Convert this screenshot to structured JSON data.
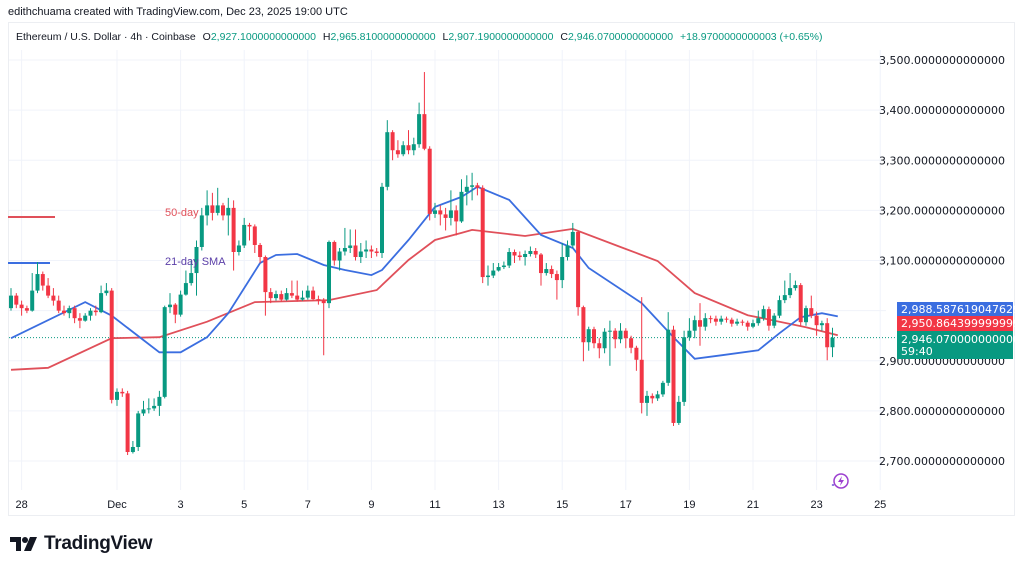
{
  "credit": "edithchuama created with TradingView.com, Dec 23, 2025 19:00 UTC",
  "legend": {
    "symbol": "Ethereum / U.S. Dollar · 4h · Coinbase",
    "o_label": "O",
    "o": "2,927.1000000000000",
    "h_label": "H",
    "h": "2,965.8100000000000",
    "l_label": "L",
    "l": "2,907.1900000000000",
    "c_label": "C",
    "c": "2,946.0700000000000",
    "change": "+18.9700000000003 (+0.65%)"
  },
  "logo": "TradingView",
  "colors": {
    "up": "#089981",
    "down": "#f23645",
    "sma21": "#3b6ee0",
    "sma50": "#e0505a",
    "grid": "#f0f3fa"
  },
  "price_labels": {
    "sma21": "2,988.5876190476296",
    "sma50": "2,950.8643999999992",
    "last": "2,946.0700000000000",
    "countdown": "59:40"
  },
  "chart_data": {
    "type": "candlestick",
    "interval": "4h",
    "ylim": [
      2650,
      3550
    ],
    "grid": true,
    "y_ticks": [
      {
        "value": 3500,
        "label": "3,500.0000000000000"
      },
      {
        "value": 3400,
        "label": "3,400.0000000000000"
      },
      {
        "value": 3300,
        "label": "3,300.0000000000000"
      },
      {
        "value": 3200,
        "label": "3,200.0000000000000"
      },
      {
        "value": 3100,
        "label": "3,100.0000000000000"
      },
      {
        "value": 3000,
        "label": "2,988.5876190476296",
        "hidden": true
      },
      {
        "value": 2900,
        "label": "2,900.0000000000000"
      },
      {
        "value": 2800,
        "label": "2,800.0000000000000"
      },
      {
        "value": 2700,
        "label": "2,700.0000000000000"
      }
    ],
    "x_ticks": [
      {
        "label": "28",
        "date": "2025-11-28"
      },
      {
        "label": "Dec",
        "date": "2025-12-01"
      },
      {
        "label": "3",
        "date": "2025-12-03"
      },
      {
        "label": "5",
        "date": "2025-12-05"
      },
      {
        "label": "7",
        "date": "2025-12-07"
      },
      {
        "label": "9",
        "date": "2025-12-09"
      },
      {
        "label": "11",
        "date": "2025-12-11"
      },
      {
        "label": "13",
        "date": "2025-12-13"
      },
      {
        "label": "15",
        "date": "2025-12-15"
      },
      {
        "label": "17",
        "date": "2025-12-17"
      },
      {
        "label": "19",
        "date": "2025-12-19"
      },
      {
        "label": "21",
        "date": "2025-12-21"
      },
      {
        "label": "23",
        "date": "2025-12-23"
      },
      {
        "label": "25",
        "date": "2025-12-25"
      }
    ],
    "annotations": {
      "sma50_label": "50-day",
      "sma21_label": "21-day SMA"
    },
    "last_price": 2946.07,
    "candles_ohlc": [
      [
        3005,
        3045,
        3000,
        3030
      ],
      [
        3030,
        3035,
        3005,
        3012
      ],
      [
        3012,
        3020,
        2990,
        3005
      ],
      [
        3005,
        3010,
        2995,
        3000
      ],
      [
        3000,
        3075,
        2998,
        3040
      ],
      [
        3040,
        3097,
        3035,
        3073
      ],
      [
        3073,
        3078,
        3040,
        3050
      ],
      [
        3050,
        3065,
        3025,
        3030
      ],
      [
        3030,
        3045,
        3010,
        3020
      ],
      [
        3020,
        3030,
        2995,
        3000
      ],
      [
        3000,
        3010,
        2990,
        2995
      ],
      [
        2995,
        3010,
        2985,
        3005
      ],
      [
        3005,
        3010,
        2975,
        2985
      ],
      [
        2985,
        2995,
        2965,
        2980
      ],
      [
        2980,
        2995,
        2978,
        2990
      ],
      [
        2990,
        3005,
        2980,
        3000
      ],
      [
        3000,
        3010,
        2990,
        2997
      ],
      [
        2997,
        3050,
        2995,
        3035
      ],
      [
        3035,
        3055,
        3030,
        3040
      ],
      [
        3040,
        3045,
        2815,
        2822
      ],
      [
        2822,
        2845,
        2810,
        2838
      ],
      [
        2838,
        2845,
        2828,
        2835
      ],
      [
        2835,
        2840,
        2712,
        2718
      ],
      [
        2718,
        2740,
        2715,
        2728
      ],
      [
        2728,
        2800,
        2720,
        2795
      ],
      [
        2795,
        2820,
        2790,
        2803
      ],
      [
        2803,
        2825,
        2795,
        2805
      ],
      [
        2805,
        2825,
        2800,
        2810
      ],
      [
        2810,
        2840,
        2790,
        2828
      ],
      [
        2828,
        3010,
        2825,
        3007
      ],
      [
        3007,
        3035,
        2995,
        3012
      ],
      [
        3012,
        3015,
        2975,
        2992
      ],
      [
        2992,
        3040,
        2988,
        3032
      ],
      [
        3032,
        3080,
        3030,
        3055
      ],
      [
        3055,
        3100,
        3050,
        3075
      ],
      [
        3075,
        3140,
        3030,
        3127
      ],
      [
        3127,
        3205,
        3120,
        3190
      ],
      [
        3190,
        3240,
        3170,
        3210
      ],
      [
        3210,
        3235,
        3180,
        3195
      ],
      [
        3195,
        3245,
        3190,
        3210
      ],
      [
        3210,
        3215,
        3180,
        3190
      ],
      [
        3190,
        3225,
        3150,
        3205
      ],
      [
        3205,
        3220,
        3080,
        3117
      ],
      [
        3117,
        3140,
        3110,
        3130
      ],
      [
        3130,
        3185,
        3125,
        3171
      ],
      [
        3171,
        3175,
        3140,
        3168
      ],
      [
        3168,
        3172,
        3115,
        3131
      ],
      [
        3131,
        3135,
        3095,
        3107
      ],
      [
        3107,
        3110,
        2990,
        3037
      ],
      [
        3037,
        3045,
        3015,
        3025
      ],
      [
        3025,
        3040,
        3020,
        3033
      ],
      [
        3033,
        3040,
        3018,
        3022
      ],
      [
        3022,
        3045,
        3020,
        3035
      ],
      [
        3035,
        3060,
        3025,
        3030
      ],
      [
        3030,
        3060,
        3018,
        3022
      ],
      [
        3022,
        3040,
        3020,
        3026
      ],
      [
        3026,
        3050,
        3022,
        3040
      ],
      [
        3040,
        3048,
        3020,
        3023
      ],
      [
        3023,
        3030,
        3012,
        3020
      ],
      [
        3020,
        3025,
        2911,
        3015
      ],
      [
        3015,
        3140,
        3005,
        3137
      ],
      [
        3137,
        3140,
        3090,
        3100
      ],
      [
        3100,
        3125,
        3080,
        3118
      ],
      [
        3118,
        3165,
        3110,
        3125
      ],
      [
        3125,
        3162,
        3115,
        3130
      ],
      [
        3130,
        3162,
        3100,
        3107
      ],
      [
        3107,
        3135,
        3095,
        3118
      ],
      [
        3118,
        3140,
        3105,
        3122
      ],
      [
        3122,
        3130,
        3105,
        3118
      ],
      [
        3118,
        3125,
        3108,
        3115
      ],
      [
        3115,
        3255,
        3105,
        3247
      ],
      [
        3247,
        3380,
        3240,
        3356
      ],
      [
        3356,
        3360,
        3300,
        3320
      ],
      [
        3320,
        3340,
        3305,
        3312
      ],
      [
        3312,
        3338,
        3308,
        3330
      ],
      [
        3330,
        3360,
        3312,
        3320
      ],
      [
        3320,
        3345,
        3310,
        3332
      ],
      [
        3332,
        3415,
        3325,
        3392
      ],
      [
        3392,
        3476,
        3320,
        3323
      ],
      [
        3323,
        3328,
        3180,
        3193
      ],
      [
        3193,
        3215,
        3185,
        3200
      ],
      [
        3200,
        3210,
        3170,
        3192
      ],
      [
        3192,
        3205,
        3160,
        3185
      ],
      [
        3185,
        3240,
        3170,
        3200
      ],
      [
        3200,
        3210,
        3150,
        3178
      ],
      [
        3178,
        3262,
        3175,
        3237
      ],
      [
        3237,
        3270,
        3210,
        3247
      ],
      [
        3247,
        3275,
        3220,
        3250
      ],
      [
        3250,
        3255,
        3230,
        3245
      ],
      [
        3245,
        3250,
        3055,
        3067
      ],
      [
        3067,
        3090,
        3050,
        3070
      ],
      [
        3070,
        3095,
        3065,
        3080
      ],
      [
        3080,
        3095,
        3078,
        3087
      ],
      [
        3087,
        3098,
        3083,
        3090
      ],
      [
        3090,
        3125,
        3085,
        3117
      ],
      [
        3117,
        3122,
        3095,
        3110
      ],
      [
        3110,
        3118,
        3100,
        3107
      ],
      [
        3107,
        3120,
        3090,
        3113
      ],
      [
        3113,
        3128,
        3108,
        3119
      ],
      [
        3119,
        3125,
        3105,
        3112
      ],
      [
        3112,
        3115,
        3050,
        3075
      ],
      [
        3075,
        3095,
        3070,
        3083
      ],
      [
        3083,
        3090,
        3065,
        3073
      ],
      [
        3073,
        3080,
        3022,
        3061
      ],
      [
        3061,
        3135,
        3045,
        3107
      ],
      [
        3107,
        3140,
        3100,
        3130
      ],
      [
        3130,
        3175,
        3125,
        3157
      ],
      [
        3157,
        3160,
        2990,
        3007
      ],
      [
        3007,
        3010,
        2899,
        2937
      ],
      [
        2937,
        2968,
        2920,
        2963
      ],
      [
        2963,
        2968,
        2925,
        2935
      ],
      [
        2935,
        2945,
        2905,
        2925
      ],
      [
        2925,
        2965,
        2915,
        2958
      ],
      [
        2958,
        2980,
        2890,
        2960
      ],
      [
        2960,
        2965,
        2925,
        2943
      ],
      [
        2943,
        2975,
        2935,
        2960
      ],
      [
        2960,
        2965,
        2925,
        2945
      ],
      [
        2945,
        2950,
        2915,
        2926
      ],
      [
        2926,
        2930,
        2880,
        2902
      ],
      [
        2902,
        3027,
        2795,
        2816
      ],
      [
        2816,
        2840,
        2790,
        2830
      ],
      [
        2830,
        2835,
        2815,
        2825
      ],
      [
        2825,
        2840,
        2820,
        2833
      ],
      [
        2833,
        2860,
        2828,
        2856
      ],
      [
        2856,
        2997,
        2850,
        2962
      ],
      [
        2962,
        2970,
        2770,
        2776
      ],
      [
        2776,
        2830,
        2772,
        2818
      ],
      [
        2818,
        2960,
        2810,
        2947
      ],
      [
        2947,
        2985,
        2940,
        2960
      ],
      [
        2960,
        2990,
        2945,
        2981
      ],
      [
        2981,
        3015,
        2930,
        2968
      ],
      [
        2968,
        2995,
        2960,
        2985
      ],
      [
        2985,
        2990,
        2975,
        2984
      ],
      [
        2984,
        2990,
        2970,
        2978
      ],
      [
        2978,
        2990,
        2972,
        2984
      ],
      [
        2984,
        2988,
        2976,
        2982
      ],
      [
        2982,
        2986,
        2968,
        2974
      ],
      [
        2974,
        2984,
        2970,
        2978
      ],
      [
        2978,
        2982,
        2970,
        2976
      ],
      [
        2976,
        2980,
        2960,
        2968
      ],
      [
        2968,
        2982,
        2965,
        2975
      ],
      [
        2975,
        3000,
        2970,
        2985
      ],
      [
        2985,
        3010,
        2980,
        3003
      ],
      [
        3003,
        3008,
        2960,
        2970
      ],
      [
        2970,
        2995,
        2965,
        2990
      ],
      [
        2990,
        3030,
        2985,
        3021
      ],
      [
        3021,
        3060,
        3015,
        3031
      ],
      [
        3031,
        3075,
        3025,
        3045
      ],
      [
        3045,
        3060,
        3040,
        3051
      ],
      [
        3051,
        3055,
        2970,
        2977
      ],
      [
        2977,
        3010,
        2970,
        3005
      ],
      [
        3005,
        3030,
        2985,
        2990
      ],
      [
        2990,
        2998,
        2950,
        2971
      ],
      [
        2971,
        2980,
        2960,
        2975
      ],
      [
        2975,
        2985,
        2901,
        2927
      ],
      [
        2927,
        2965.81,
        2907.19,
        2946.07
      ]
    ],
    "sma21": [
      [
        "2025-11-27T16:00",
        2945
      ],
      [
        "2025-11-30T00:00",
        3017
      ],
      [
        "2025-11-30T20:00",
        2990
      ],
      [
        "2025-12-02T08:00",
        2917
      ],
      [
        "2025-12-03T00:00",
        2917
      ],
      [
        "2025-12-03T20:00",
        2947
      ],
      [
        "2025-12-04T12:00",
        2995
      ],
      [
        "2025-12-05T12:00",
        3095
      ],
      [
        "2025-12-06T00:00",
        3111
      ],
      [
        "2025-12-06T16:00",
        3113
      ],
      [
        "2025-12-07T12:00",
        3091
      ],
      [
        "2025-12-08T04:00",
        3081
      ],
      [
        "2025-12-09T00:00",
        3071
      ],
      [
        "2025-12-09T08:00",
        3081
      ],
      [
        "2025-12-10T04:00",
        3141
      ],
      [
        "2025-12-11T00:00",
        3207
      ],
      [
        "2025-12-11T20:00",
        3227
      ],
      [
        "2025-12-12T08:00",
        3247
      ],
      [
        "2025-12-13T08:00",
        3221
      ],
      [
        "2025-12-14T08:00",
        3151
      ],
      [
        "2025-12-15T08:00",
        3125
      ],
      [
        "2025-12-15T20:00",
        3085
      ],
      [
        "2025-12-17T12:00",
        3015
      ],
      [
        "2025-12-18T12:00",
        2947
      ],
      [
        "2025-12-19T04:00",
        2904
      ],
      [
        "2025-12-20T00:00",
        2911
      ],
      [
        "2025-12-21T04:00",
        2921
      ],
      [
        "2025-12-21T20:00",
        2955
      ],
      [
        "2025-12-22T12:00",
        2987
      ],
      [
        "2025-12-23T04:00",
        2995
      ],
      [
        "2025-12-23T16:00",
        2988.59
      ]
    ],
    "sma50": [
      [
        "2025-11-27T16:00",
        2882
      ],
      [
        "2025-11-28T20:00",
        2886
      ],
      [
        "2025-11-30T20:00",
        2945
      ],
      [
        "2025-12-02T08:00",
        2947
      ],
      [
        "2025-12-03T20:00",
        2978
      ],
      [
        "2025-12-05T08:00",
        3017
      ],
      [
        "2025-12-07T16:00",
        3021
      ],
      [
        "2025-12-09T04:00",
        3041
      ],
      [
        "2025-12-10T04:00",
        3101
      ],
      [
        "2025-12-11T00:00",
        3141
      ],
      [
        "2025-12-11T20:00",
        3155
      ],
      [
        "2025-12-12T04:00",
        3161
      ],
      [
        "2025-12-13T20:00",
        3149
      ],
      [
        "2025-12-15T08:00",
        3163
      ],
      [
        "2025-12-16T20:00",
        3127
      ],
      [
        "2025-12-18T00:00",
        3099
      ],
      [
        "2025-12-19T04:00",
        3035
      ],
      [
        "2025-12-20T20:00",
        2991
      ],
      [
        "2025-12-22T16:00",
        2967
      ],
      [
        "2025-12-23T16:00",
        2950.86
      ]
    ]
  }
}
